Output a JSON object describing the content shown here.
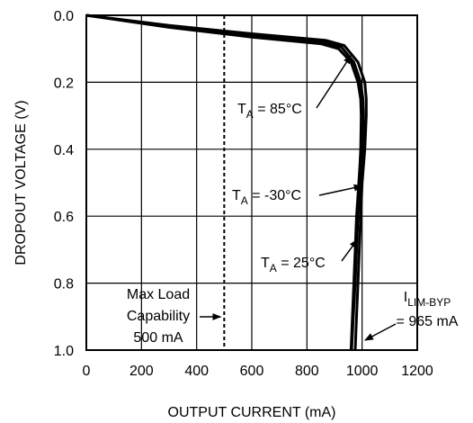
{
  "chart_data": {
    "type": "line",
    "xlabel": "OUTPUT CURRENT (mA)",
    "ylabel": "DROPOUT VOLTAGE (V)",
    "xlim": [
      0,
      1200
    ],
    "ylim": [
      0.0,
      1.0
    ],
    "y_axis_inverted": true,
    "grid": true,
    "x_ticks": [
      "0",
      "200",
      "400",
      "600",
      "800",
      "1000",
      "1200"
    ],
    "y_ticks": [
      "0.0",
      "0.2",
      "0.4",
      "0.6",
      "0.8",
      "1.0"
    ],
    "series": [
      {
        "name": "T_A = 85°C",
        "color": "#000000",
        "points": [
          [
            0,
            0.0
          ],
          [
            300,
            0.03
          ],
          [
            600,
            0.055
          ],
          [
            870,
            0.075
          ],
          [
            935,
            0.09
          ],
          [
            985,
            0.14
          ],
          [
            1010,
            0.2
          ],
          [
            1015,
            0.25
          ],
          [
            1015,
            0.3
          ],
          [
            1010,
            0.4
          ],
          [
            1005,
            0.45
          ],
          [
            1000,
            0.5
          ],
          [
            995,
            0.6
          ],
          [
            990,
            0.7
          ],
          [
            985,
            0.8
          ],
          [
            980,
            0.9
          ],
          [
            975,
            1.0
          ]
        ]
      },
      {
        "name": "T_A = -30°C",
        "color": "#000000",
        "points": [
          [
            0,
            0.0
          ],
          [
            300,
            0.033
          ],
          [
            600,
            0.06
          ],
          [
            860,
            0.08
          ],
          [
            925,
            0.095
          ],
          [
            970,
            0.14
          ],
          [
            995,
            0.2
          ],
          [
            1003,
            0.25
          ],
          [
            1005,
            0.3
          ],
          [
            1003,
            0.4
          ],
          [
            998,
            0.45
          ],
          [
            993,
            0.5
          ],
          [
            985,
            0.6
          ],
          [
            980,
            0.7
          ],
          [
            975,
            0.8
          ],
          [
            968,
            0.9
          ],
          [
            962,
            1.0
          ]
        ]
      },
      {
        "name": "T_A = 25°C",
        "color": "#000000",
        "points": [
          [
            0,
            0.0
          ],
          [
            300,
            0.036
          ],
          [
            600,
            0.065
          ],
          [
            850,
            0.085
          ],
          [
            915,
            0.1
          ],
          [
            960,
            0.14
          ],
          [
            985,
            0.2
          ],
          [
            995,
            0.25
          ],
          [
            997,
            0.3
          ],
          [
            995,
            0.4
          ],
          [
            992,
            0.45
          ],
          [
            988,
            0.5
          ],
          [
            980,
            0.6
          ],
          [
            975,
            0.7
          ],
          [
            970,
            0.8
          ],
          [
            965,
            0.9
          ],
          [
            960,
            1.0
          ]
        ]
      }
    ],
    "reference_lines": [
      {
        "orientation": "vertical",
        "x": 500,
        "style": "dotted"
      }
    ],
    "annotations": [
      {
        "main": "T",
        "sub": "A",
        "rest": " = 85°C",
        "target": [
          960,
          0.12
        ]
      },
      {
        "main": "T",
        "sub": "A",
        "rest": " = -30°C",
        "target": [
          1000,
          0.51
        ]
      },
      {
        "main": "T",
        "sub": "A",
        "rest": " = 25°C",
        "target": [
          983,
          0.67
        ]
      }
    ],
    "max_load_label": [
      "Max Load",
      "Capability",
      "500 mA"
    ],
    "limit_label": {
      "main": "I",
      "sub": "LIM-BYP",
      "line2": "= 965 mA"
    }
  }
}
